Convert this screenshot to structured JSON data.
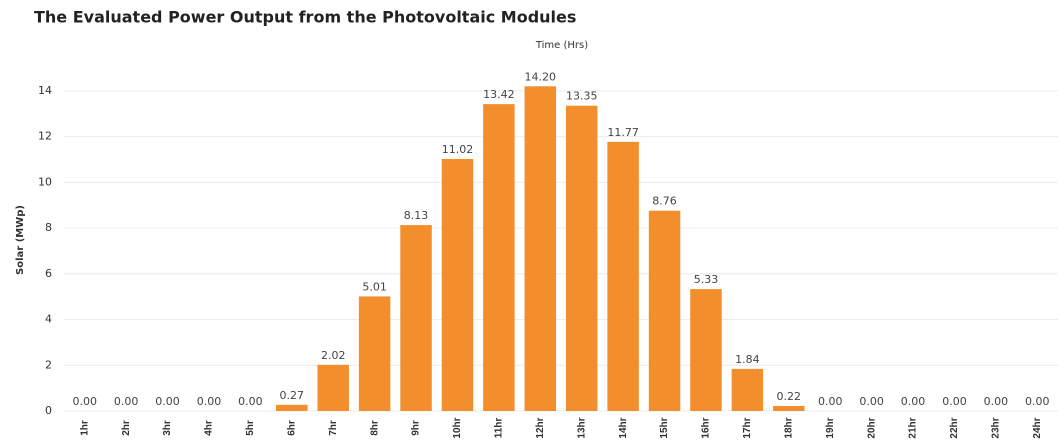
{
  "chart_data": {
    "type": "bar",
    "title": "The Evaluated Power Output from the Photovoltaic Modules",
    "x_label": "Time (Hrs)",
    "y_label": "Solar (MWp)",
    "categories": [
      "1hr",
      "2hr",
      "3hr",
      "4hr",
      "5hr",
      "6hr",
      "7hr",
      "8hr",
      "9hr",
      "10hr",
      "11hr",
      "12hr",
      "13hr",
      "14hr",
      "15hr",
      "16hr",
      "17hr",
      "18hr",
      "19hr",
      "20hr",
      "21hr",
      "22hr",
      "23hr",
      "24hr"
    ],
    "values": [
      0,
      0,
      0,
      0,
      0,
      0.27,
      2.02,
      5.01,
      8.13,
      11.02,
      13.42,
      14.2,
      13.35,
      11.77,
      8.76,
      5.33,
      1.84,
      0.22,
      0,
      0,
      0,
      0,
      0,
      0
    ],
    "value_labels": [
      "0.00",
      "0.00",
      "0.00",
      "0.00",
      "0.00",
      "0.27",
      "2.02",
      "5.01",
      "8.13",
      "11.02",
      "13.42",
      "14.20",
      "13.35",
      "11.77",
      "8.76",
      "5.33",
      "1.84",
      "0.22",
      "0.00",
      "0.00",
      "0.00",
      "0.00",
      "0.00",
      "0.00"
    ],
    "color": "#f28e2b",
    "ylim": [
      0,
      15
    ],
    "yticks": [
      0,
      2,
      4,
      6,
      8,
      10,
      12,
      14
    ],
    "grid": true
  }
}
